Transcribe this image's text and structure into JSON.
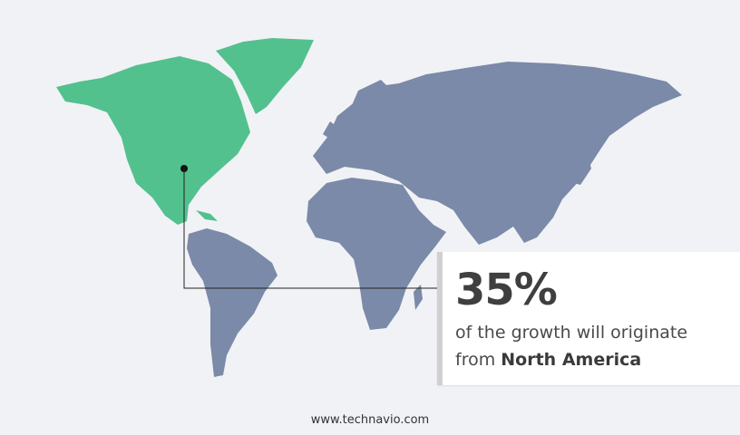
{
  "colors": {
    "highlight_region": "#52c18e",
    "other_regions": "#7a8aa8",
    "background": "#f1f2f6"
  },
  "highlight_region": "North America",
  "callout": {
    "percentage": "35%",
    "text": "of the growth will originate",
    "prefix": "from",
    "region": "North America"
  },
  "footer": {
    "website": "www.technavio.com"
  }
}
